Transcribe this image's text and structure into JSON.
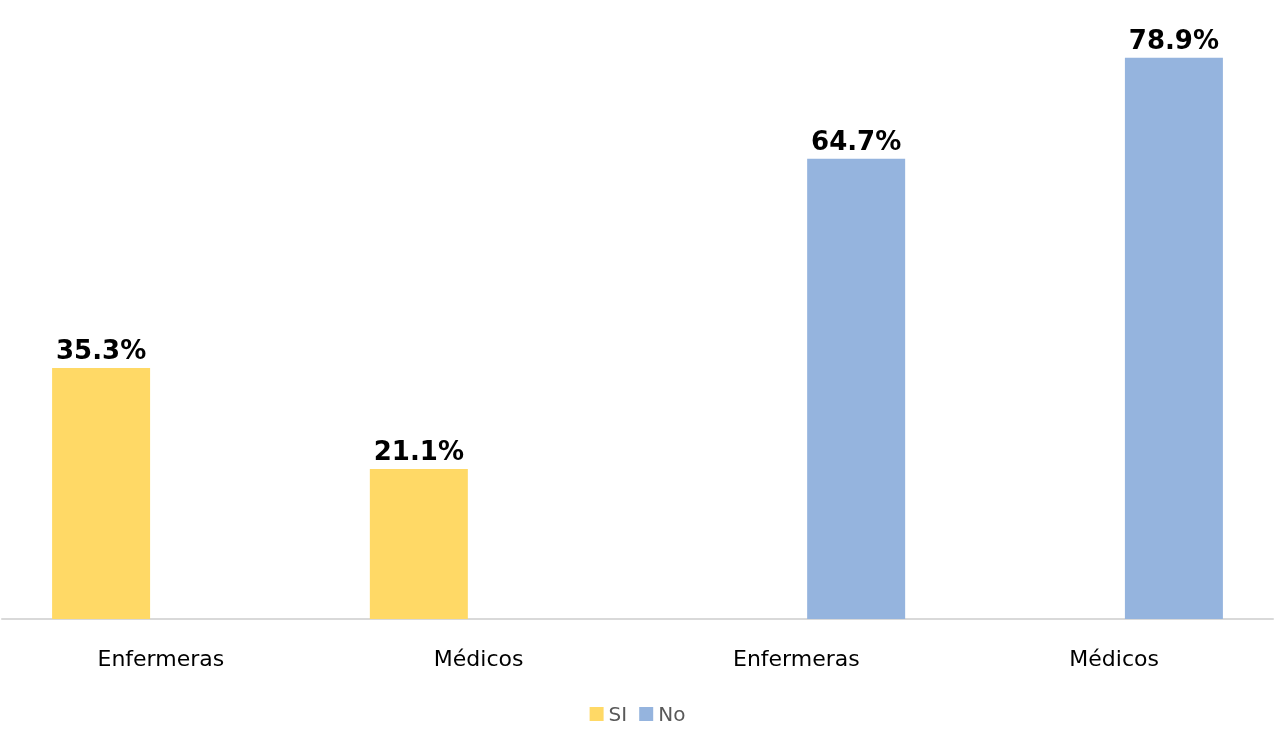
{
  "chart_data": {
    "type": "bar",
    "categories": [
      "Enfermeras",
      "Médicos",
      "Enfermeras",
      "Médicos"
    ],
    "series": [
      {
        "name": "SI",
        "color": "#ffd966",
        "values": [
          35.3,
          21.1,
          null,
          null
        ],
        "value_labels": [
          "35.3%",
          "21.1%",
          null,
          null
        ]
      },
      {
        "name": "No",
        "color": "#95b4de",
        "values": [
          null,
          null,
          64.7,
          78.9
        ],
        "value_labels": [
          null,
          null,
          "64.7%",
          "78.9%"
        ]
      }
    ],
    "legend": "bottom"
  }
}
